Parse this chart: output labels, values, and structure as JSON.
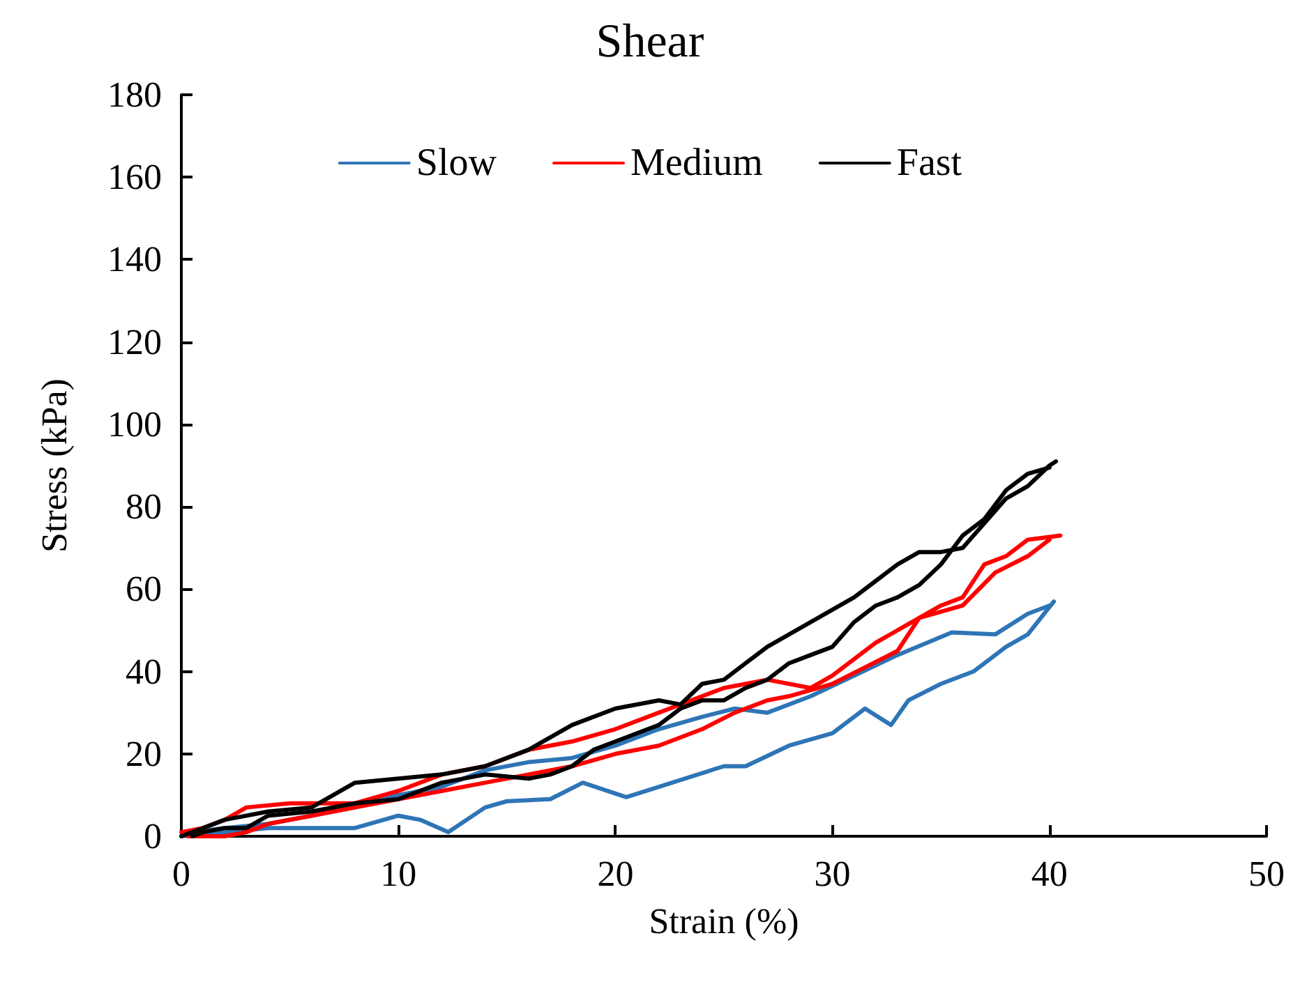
{
  "chart_data": {
    "type": "line",
    "title": "Shear",
    "xlabel": "Strain (%)",
    "ylabel": "Stress (kPa)",
    "xlim": [
      0,
      50
    ],
    "xticks": [
      0,
      10,
      20,
      30,
      40,
      50
    ],
    "ylim": [
      0,
      180
    ],
    "yticks": [
      0,
      20,
      40,
      60,
      80,
      100,
      120,
      140,
      160,
      180
    ],
    "grid": false,
    "legend": "top",
    "marker": "none",
    "line_style": "solid",
    "series": [
      {
        "name": "Slow",
        "color": "#2e75b6",
        "x": [
          0,
          4,
          8,
          10,
          11,
          12.3,
          14,
          15,
          17,
          18.5,
          20.5,
          22,
          25,
          26,
          28,
          30,
          31.5,
          32.7,
          33.5,
          35,
          36.5,
          38,
          39,
          40.2
        ],
        "values": [
          0,
          2,
          2,
          5,
          4,
          1,
          7,
          8.5,
          9,
          13,
          9.5,
          12,
          17,
          17,
          22,
          25,
          31,
          27,
          33,
          37,
          40,
          46,
          49,
          57
        ]
      },
      {
        "color": "#2e75b6",
        "x": [
          0.5,
          2,
          4,
          6,
          8,
          10,
          12,
          14,
          16,
          18,
          20,
          22,
          24,
          25.5,
          27,
          29,
          31,
          33,
          35.5,
          37.5,
          39,
          40
        ],
        "values": [
          1,
          2,
          3,
          5,
          7,
          10,
          12,
          16,
          18,
          19,
          22,
          26,
          29,
          31,
          30,
          34,
          39,
          44,
          49.5,
          49,
          54,
          56
        ]
      },
      {
        "name": "Medium",
        "color": "#ff0000",
        "x": [
          0,
          1,
          2,
          3,
          5,
          8,
          10,
          12,
          14,
          16,
          18,
          20,
          22,
          24,
          25,
          27,
          29,
          30,
          32,
          33,
          35,
          36,
          37,
          38,
          39,
          40.5
        ],
        "values": [
          1,
          2,
          4,
          7,
          8,
          8,
          11,
          15,
          17,
          21,
          23,
          26,
          30,
          34,
          36,
          38,
          36,
          39,
          47,
          50,
          56,
          58,
          66,
          68,
          72,
          73
        ]
      },
      {
        "color": "#ff0000",
        "x": [
          0.3,
          2,
          3,
          4,
          6,
          8,
          10,
          12,
          14,
          16,
          18,
          20,
          22,
          24,
          25.5,
          27,
          28,
          30,
          31.5,
          33,
          34,
          36,
          37.5,
          39,
          40
        ],
        "values": [
          0,
          0,
          1,
          3,
          5,
          7,
          9,
          11,
          13,
          15,
          17,
          20,
          22,
          26,
          30,
          33,
          34,
          37,
          41,
          45,
          53,
          56,
          64,
          68,
          72
        ]
      },
      {
        "name": "Fast",
        "color": "#000000",
        "x": [
          0,
          2,
          4,
          6,
          8,
          10,
          12,
          14,
          16,
          18,
          20,
          22,
          23,
          24,
          25,
          26,
          27,
          28,
          29,
          30,
          31,
          32,
          33,
          34,
          35,
          36,
          37,
          38,
          39,
          40,
          40.3
        ],
        "values": [
          0,
          4,
          6,
          7,
          13,
          14,
          15,
          17,
          21,
          27,
          31,
          33,
          32,
          37,
          38,
          42,
          46,
          49,
          52,
          55,
          58,
          62,
          66,
          69,
          69,
          70,
          76,
          82,
          85,
          90,
          91
        ]
      },
      {
        "color": "#000000",
        "x": [
          0.5,
          1,
          2,
          3,
          4,
          6,
          8,
          10,
          12,
          14,
          16,
          17,
          18,
          19,
          20,
          22,
          23,
          24,
          25,
          26,
          27,
          28,
          29,
          30,
          31,
          32,
          33,
          34,
          35,
          36,
          37,
          38,
          39,
          40
        ],
        "values": [
          0,
          1,
          2,
          2,
          5,
          6,
          8,
          9,
          13,
          15,
          14,
          15,
          17,
          21,
          23,
          27,
          31,
          33,
          33,
          36,
          38,
          42,
          44,
          46,
          52,
          56,
          58,
          61,
          66,
          73,
          77,
          84,
          88,
          89.5
        ]
      }
    ]
  }
}
